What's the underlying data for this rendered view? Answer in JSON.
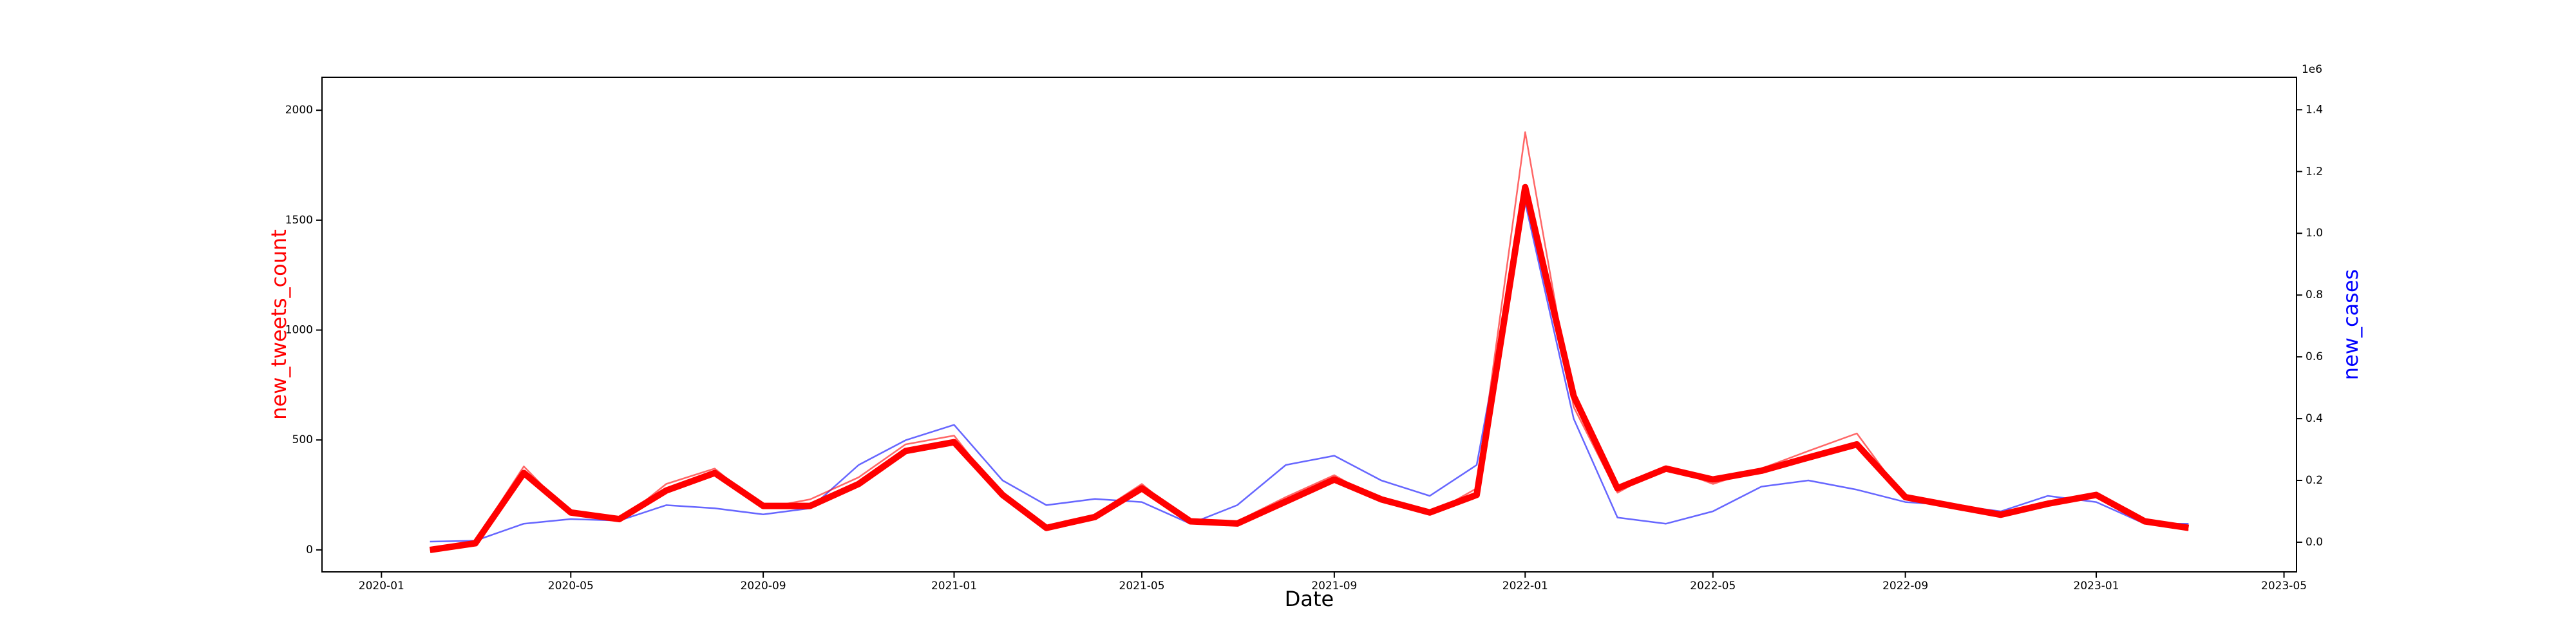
{
  "chart_data": {
    "type": "line",
    "xlabel": "Date",
    "ylabel": "new_tweets_count",
    "y2label": "new_cases",
    "y2_offset_label": "1e6",
    "ylabel_color": "#ff0000",
    "y2label_color": "#0000ff",
    "x": [
      "2020-02",
      "2020-03",
      "2020-04",
      "2020-05",
      "2020-06",
      "2020-07",
      "2020-08",
      "2020-09",
      "2020-10",
      "2020-11",
      "2020-12",
      "2021-01",
      "2021-02",
      "2021-03",
      "2021-04",
      "2021-05",
      "2021-06",
      "2021-07",
      "2021-08",
      "2021-09",
      "2021-10",
      "2021-11",
      "2021-12",
      "2022-01",
      "2022-02",
      "2022-03",
      "2022-04",
      "2022-05",
      "2022-06",
      "2022-07",
      "2022-08",
      "2022-09",
      "2022-10",
      "2022-11",
      "2022-12",
      "2023-01",
      "2023-02",
      "2023-03"
    ],
    "series": [
      {
        "color": "#0000ff",
        "axis": "y2",
        "values": [
          2000,
          5000,
          60000,
          75000,
          70000,
          120000,
          110000,
          90000,
          110000,
          250000,
          330000,
          380000,
          200000,
          120000,
          140000,
          130000,
          60000,
          120000,
          250000,
          280000,
          200000,
          150000,
          250000,
          1100000,
          400000,
          80000,
          60000,
          100000,
          180000,
          200000,
          170000,
          130000,
          120000,
          100000,
          150000,
          130000,
          60000,
          60000
        ]
      },
      {
        "color": "#ff0000",
        "values": [
          0,
          40,
          380,
          160,
          130,
          300,
          370,
          190,
          230,
          330,
          480,
          520,
          240,
          90,
          160,
          300,
          120,
          130,
          240,
          340,
          220,
          160,
          280,
          1900,
          650,
          260,
          380,
          300,
          370,
          450,
          530,
          230,
          190,
          150,
          200,
          260,
          120,
          90
        ]
      },
      {
        "color": "#ff0000",
        "values": [
          0,
          30,
          350,
          170,
          140,
          270,
          350,
          200,
          200,
          300,
          450,
          490,
          250,
          100,
          150,
          280,
          130,
          120,
          220,
          320,
          230,
          170,
          250,
          1650,
          700,
          280,
          370,
          320,
          360,
          420,
          480,
          240,
          200,
          160,
          210,
          250,
          130,
          100
        ]
      }
    ],
    "xlim": [
      "2019-11-24",
      "2023-05-09"
    ],
    "xticks": [
      "2020-01",
      "2020-05",
      "2020-09",
      "2021-01",
      "2021-05",
      "2021-09",
      "2022-01",
      "2022-05",
      "2022-09",
      "2023-01",
      "2023-05"
    ],
    "ylim": [
      -100,
      2150
    ],
    "yticks": [
      0,
      500,
      1000,
      1500,
      2000
    ],
    "y2lim": [
      -96000,
      1505000
    ],
    "y2ticks": [
      {
        "value": 0,
        "label": "0.0"
      },
      {
        "value": 200000,
        "label": "0.2"
      },
      {
        "value": 400000,
        "label": "0.4"
      },
      {
        "value": 600000,
        "label": "0.6"
      },
      {
        "value": 800000,
        "label": "0.8"
      },
      {
        "value": 1000000,
        "label": "1.0"
      },
      {
        "value": 1200000,
        "label": "1.2"
      },
      {
        "value": 1400000,
        "label": "1.4"
      }
    ]
  }
}
